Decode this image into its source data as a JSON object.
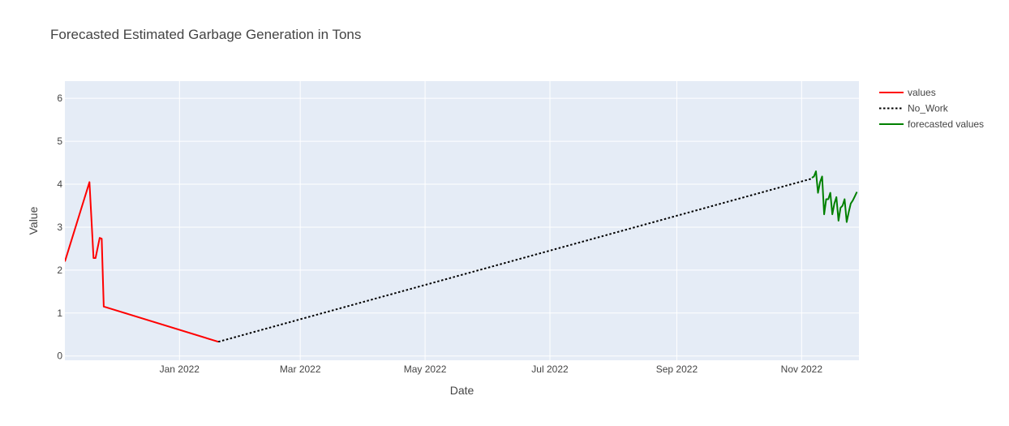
{
  "chart_data": {
    "type": "line",
    "title": "Forecasted Estimated Garbage Generation in Tons",
    "xlabel": "Date",
    "ylabel": "Value",
    "xlim": [
      "2021-11-06",
      "2022-11-29"
    ],
    "ylim": [
      -0.1,
      6.4
    ],
    "x_ticks": [
      "Jan 2022",
      "Mar 2022",
      "May 2022",
      "Jul 2022",
      "Sep 2022",
      "Nov 2022"
    ],
    "y_ticks": [
      "0",
      "1",
      "2",
      "3",
      "4",
      "5",
      "6"
    ],
    "grid": true,
    "legend_position": "top-right",
    "series": [
      {
        "name": "values",
        "color": "#ff0000",
        "dash": "solid",
        "points": [
          {
            "x": "2021-11-06",
            "y": 2.2
          },
          {
            "x": "2021-11-18",
            "y": 4.05
          },
          {
            "x": "2021-11-20",
            "y": 2.28
          },
          {
            "x": "2021-11-21",
            "y": 2.28
          },
          {
            "x": "2021-11-23",
            "y": 2.75
          },
          {
            "x": "2021-11-24",
            "y": 2.73
          },
          {
            "x": "2021-11-25",
            "y": 1.15
          },
          {
            "x": "2022-01-20",
            "y": 0.33
          }
        ]
      },
      {
        "name": "No_Work",
        "color": "#000000",
        "dash": "dot",
        "points": [
          {
            "x": "2022-01-20",
            "y": 0.33
          },
          {
            "x": "2022-11-06",
            "y": 4.13
          }
        ]
      },
      {
        "name": "forecasted values",
        "color": "#008000",
        "dash": "solid",
        "points": [
          {
            "x": "2022-11-06",
            "y": 4.15
          },
          {
            "x": "2022-11-07",
            "y": 4.18
          },
          {
            "x": "2022-11-08",
            "y": 4.3
          },
          {
            "x": "2022-11-09",
            "y": 3.8
          },
          {
            "x": "2022-11-10",
            "y": 4.05
          },
          {
            "x": "2022-11-11",
            "y": 4.18
          },
          {
            "x": "2022-11-12",
            "y": 3.3
          },
          {
            "x": "2022-11-13",
            "y": 3.65
          },
          {
            "x": "2022-11-14",
            "y": 3.65
          },
          {
            "x": "2022-11-15",
            "y": 3.8
          },
          {
            "x": "2022-11-16",
            "y": 3.3
          },
          {
            "x": "2022-11-17",
            "y": 3.55
          },
          {
            "x": "2022-11-18",
            "y": 3.7
          },
          {
            "x": "2022-11-19",
            "y": 3.15
          },
          {
            "x": "2022-11-20",
            "y": 3.45
          },
          {
            "x": "2022-11-21",
            "y": 3.5
          },
          {
            "x": "2022-11-22",
            "y": 3.65
          },
          {
            "x": "2022-11-23",
            "y": 3.12
          },
          {
            "x": "2022-11-24",
            "y": 3.35
          },
          {
            "x": "2022-11-25",
            "y": 3.55
          },
          {
            "x": "2022-11-26",
            "y": 3.62
          },
          {
            "x": "2022-11-27",
            "y": 3.72
          },
          {
            "x": "2022-11-28",
            "y": 3.82
          }
        ]
      }
    ]
  }
}
